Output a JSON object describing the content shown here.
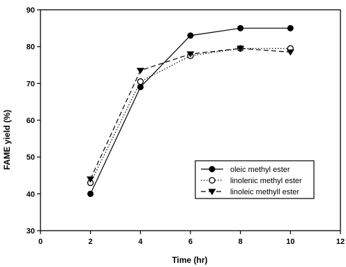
{
  "chart_data": {
    "type": "line",
    "xlabel": "Time (hr)",
    "ylabel": "FAME yield (%)",
    "xlim": [
      0,
      12
    ],
    "ylim": [
      30,
      90
    ],
    "xticks": [
      0,
      2,
      4,
      6,
      8,
      10,
      12
    ],
    "yticks": [
      30,
      40,
      50,
      60,
      70,
      80,
      90
    ],
    "grid": false,
    "legend_position": "lower-right",
    "x": [
      2,
      4,
      6,
      8,
      10
    ],
    "series": [
      {
        "name": "oleic methyl ester",
        "values": [
          40,
          69,
          83,
          85,
          85
        ],
        "marker": "filled-circle",
        "line": "solid"
      },
      {
        "name": "linolenic methyl ester",
        "values": [
          43,
          70.5,
          77.5,
          79.5,
          79.5
        ],
        "marker": "open-circle",
        "line": "dotted"
      },
      {
        "name": "linoleic methyll ester",
        "values": [
          44,
          73.5,
          78,
          79.5,
          78.5
        ],
        "marker": "filled-triangle-down",
        "line": "dashed"
      }
    ]
  }
}
